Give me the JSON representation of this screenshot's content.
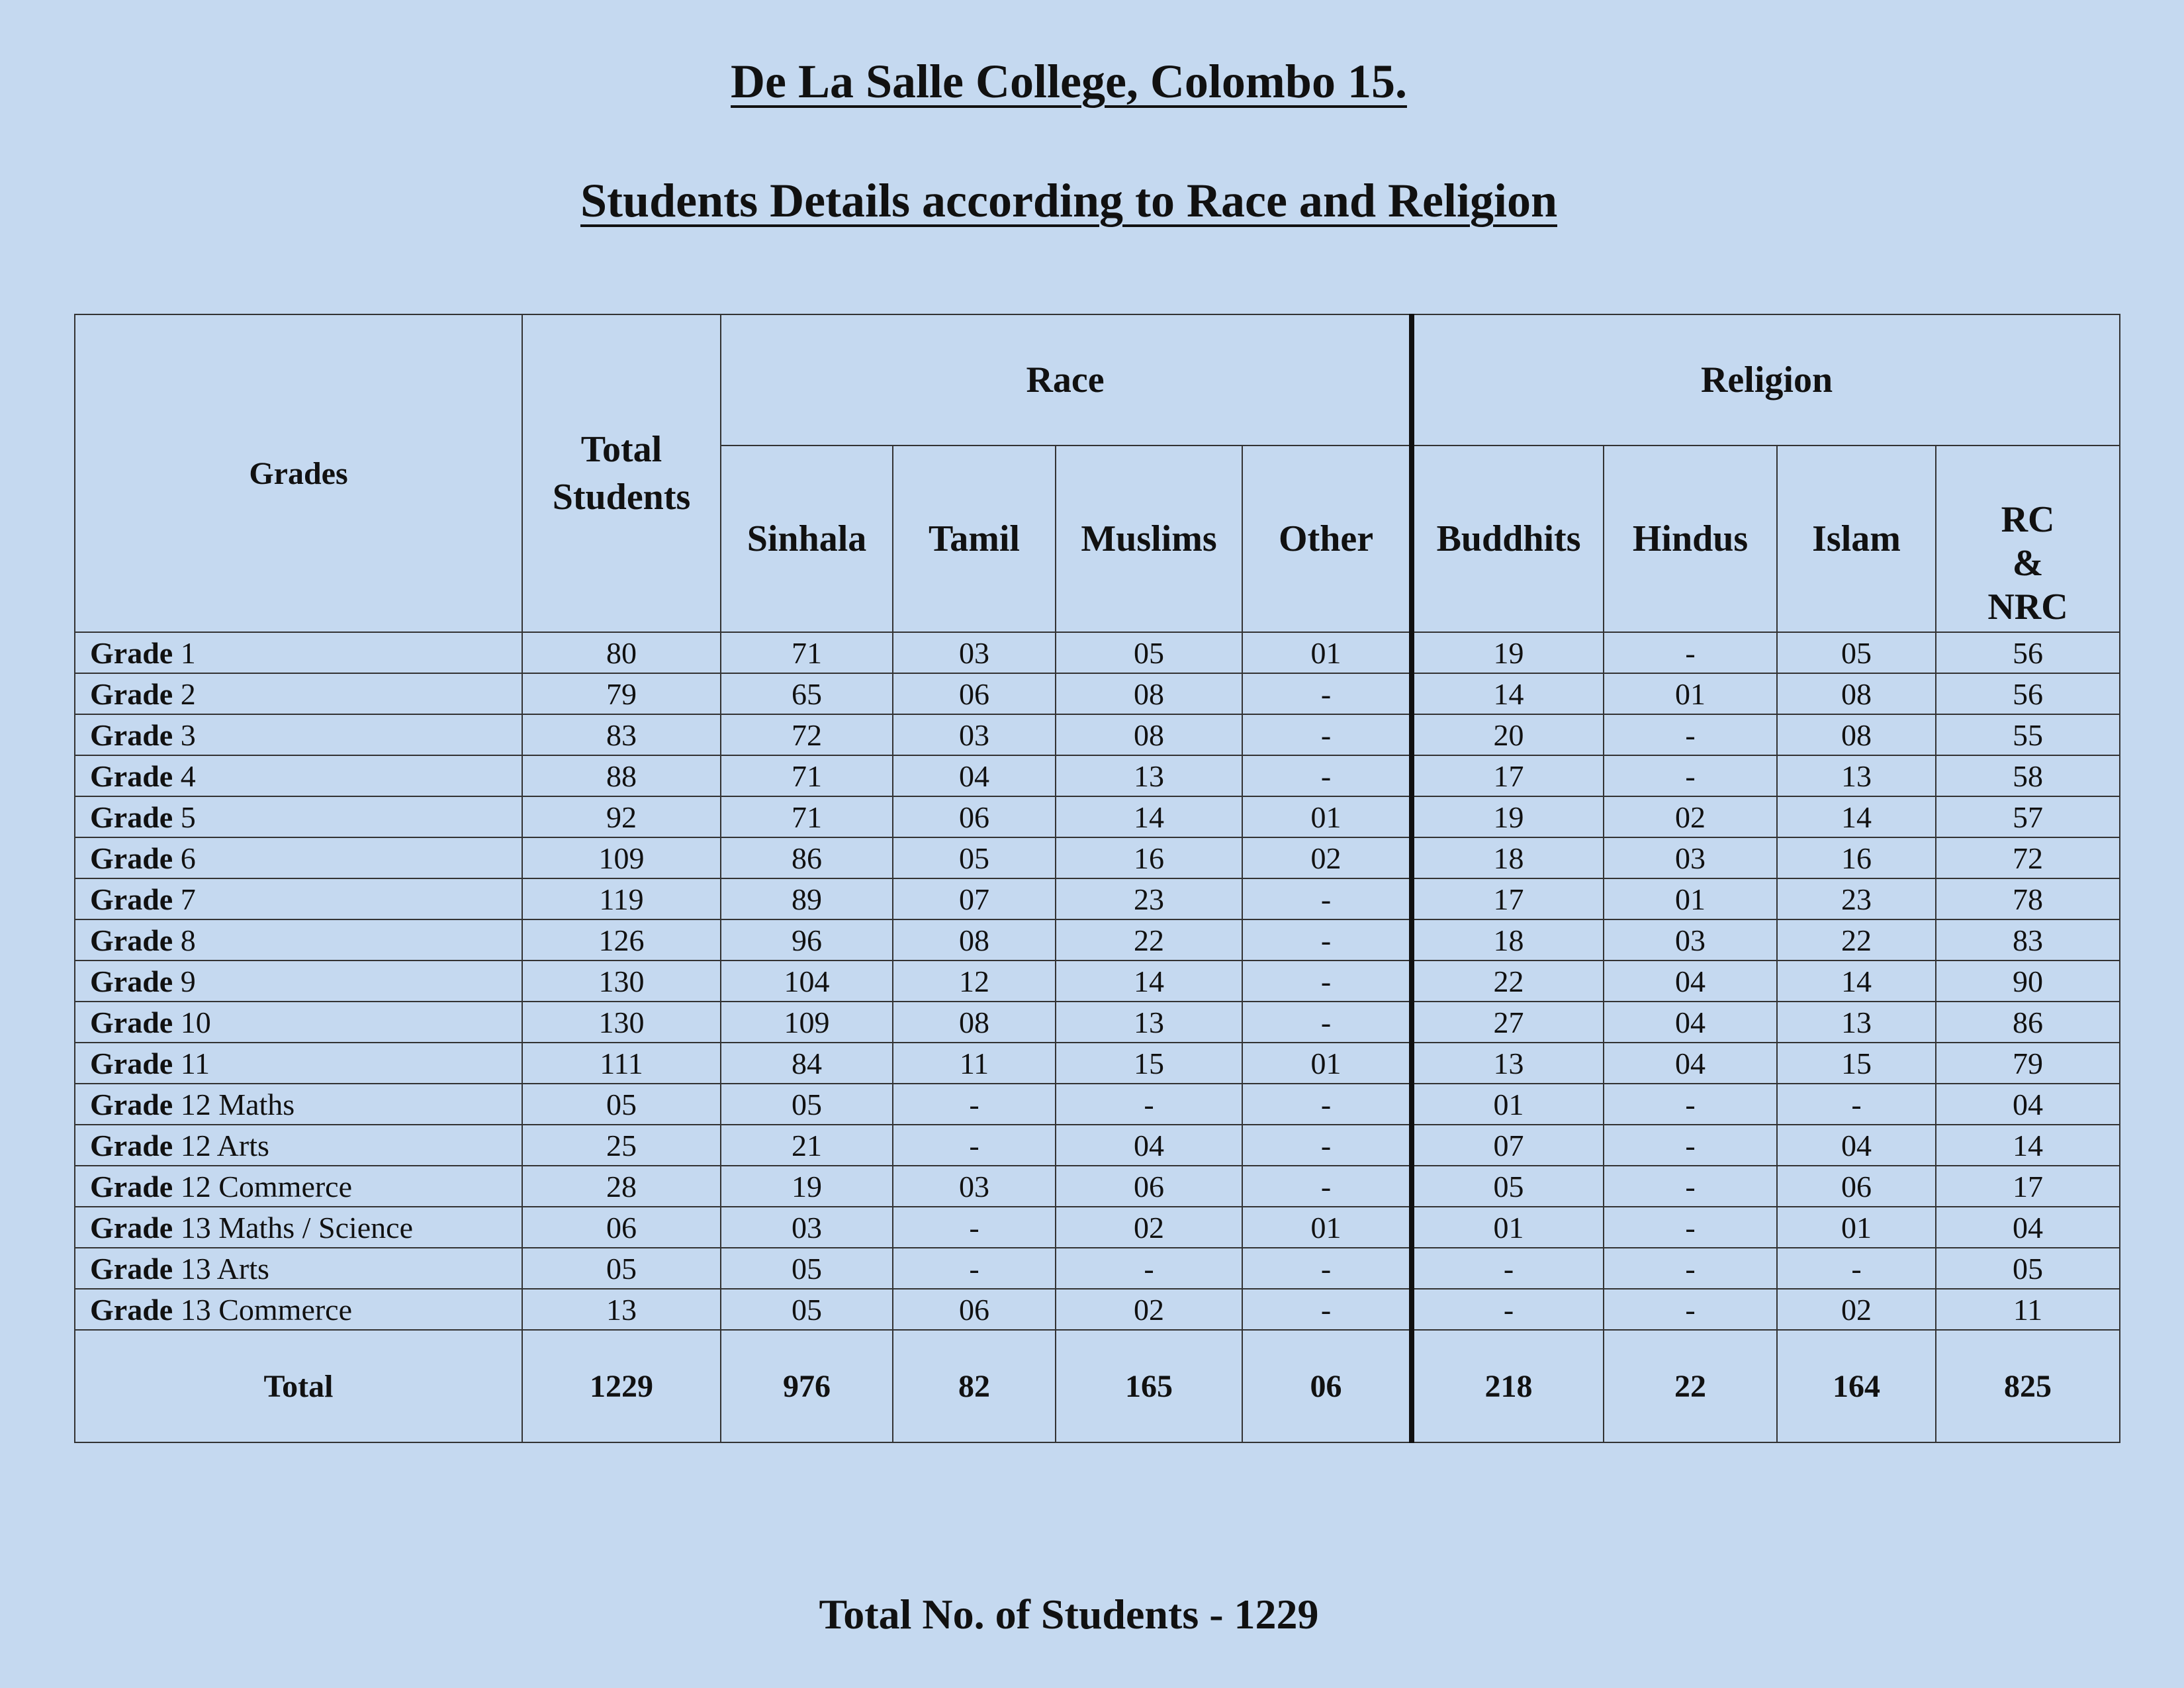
{
  "header": {
    "school": "De La Salle College, Colombo 15.",
    "subtitle": "Students Details according to Race and Religion"
  },
  "table": {
    "col_grades": "Grades",
    "col_total_line1": "Total",
    "col_total_line2": "Students",
    "group_race": "Race",
    "group_religion": "Religion",
    "race_cols": [
      "Sinhala",
      "Tamil",
      "Muslims",
      "Other"
    ],
    "religion_cols": [
      "Buddhits",
      "Hindus",
      "Islam"
    ],
    "rc_line1": "RC",
    "rc_line2": "&",
    "rc_line3": "NRC",
    "grade_word": "Grade",
    "rows": [
      {
        "label": "1",
        "cells": [
          "80",
          "71",
          "03",
          "05",
          "01",
          "19",
          "-",
          "05",
          "56"
        ]
      },
      {
        "label": "2",
        "cells": [
          "79",
          "65",
          "06",
          "08",
          "-",
          "14",
          "01",
          "08",
          "56"
        ]
      },
      {
        "label": "3",
        "cells": [
          "83",
          "72",
          "03",
          "08",
          "-",
          "20",
          "-",
          "08",
          "55"
        ]
      },
      {
        "label": "4",
        "cells": [
          "88",
          "71",
          "04",
          "13",
          "-",
          "17",
          "-",
          "13",
          "58"
        ]
      },
      {
        "label": "5",
        "cells": [
          "92",
          "71",
          "06",
          "14",
          "01",
          "19",
          "02",
          "14",
          "57"
        ]
      },
      {
        "label": "6",
        "cells": [
          "109",
          "86",
          "05",
          "16",
          "02",
          "18",
          "03",
          "16",
          "72"
        ]
      },
      {
        "label": "7",
        "cells": [
          "119",
          "89",
          "07",
          "23",
          "-",
          "17",
          "01",
          "23",
          "78"
        ]
      },
      {
        "label": "8",
        "cells": [
          "126",
          "96",
          "08",
          "22",
          "-",
          "18",
          "03",
          "22",
          "83"
        ]
      },
      {
        "label": "9",
        "cells": [
          "130",
          "104",
          "12",
          "14",
          "-",
          "22",
          "04",
          "14",
          "90"
        ]
      },
      {
        "label": "10",
        "cells": [
          "130",
          "109",
          "08",
          "13",
          "-",
          "27",
          "04",
          "13",
          "86"
        ]
      },
      {
        "label": "11",
        "cells": [
          "111",
          "84",
          "11",
          "15",
          "01",
          "13",
          "04",
          "15",
          "79"
        ]
      },
      {
        "label": "12 Maths",
        "cells": [
          "05",
          "05",
          "-",
          "-",
          "-",
          "01",
          "-",
          "-",
          "04"
        ]
      },
      {
        "label": "12 Arts",
        "cells": [
          "25",
          "21",
          "-",
          "04",
          "-",
          "07",
          "-",
          "04",
          "14"
        ]
      },
      {
        "label": "12 Commerce",
        "cells": [
          "28",
          "19",
          "03",
          "06",
          "-",
          "05",
          "-",
          "06",
          "17"
        ]
      },
      {
        "label": "13 Maths / Science",
        "cells": [
          "06",
          "03",
          "-",
          "02",
          "01",
          "01",
          "-",
          "01",
          "04"
        ]
      },
      {
        "label": "13 Arts",
        "cells": [
          "05",
          "05",
          "-",
          "-",
          "-",
          "-",
          "-",
          "-",
          "05"
        ]
      },
      {
        "label": "13 Commerce",
        "cells": [
          "13",
          "05",
          "06",
          "02",
          "-",
          "-",
          "-",
          "02",
          "11"
        ]
      }
    ],
    "total_label": "Total",
    "totals": [
      "1229",
      "976",
      "82",
      "165",
      "06",
      "218",
      "22",
      "164",
      "825"
    ]
  },
  "footer": {
    "text": "Total No. of  Students - 1229"
  }
}
